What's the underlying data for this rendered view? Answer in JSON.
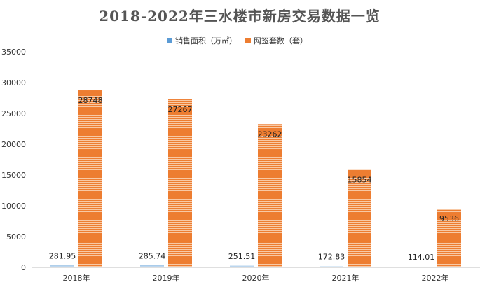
{
  "chart_data": {
    "type": "bar",
    "title": "2018-2022年三水楼市新房交易数据一览",
    "categories": [
      "2018年",
      "2019年",
      "2020年",
      "2021年",
      "2022年"
    ],
    "series": [
      {
        "name": "销售面积（万㎡）",
        "values": [
          281.95,
          285.74,
          251.51,
          172.83,
          114.01
        ],
        "color": "#5b9bd5"
      },
      {
        "name": "网签套数（套）",
        "values": [
          28748,
          27267,
          23262,
          15854,
          9536
        ],
        "color": "#ed7d31"
      }
    ],
    "y_ticks": [
      "0",
      "5000",
      "10000",
      "15000",
      "20000",
      "25000",
      "30000",
      "35000"
    ],
    "ylim": [
      0,
      35000
    ],
    "legend_position": "top-center",
    "grid": false,
    "bar_pattern": "horizontal stripes"
  }
}
